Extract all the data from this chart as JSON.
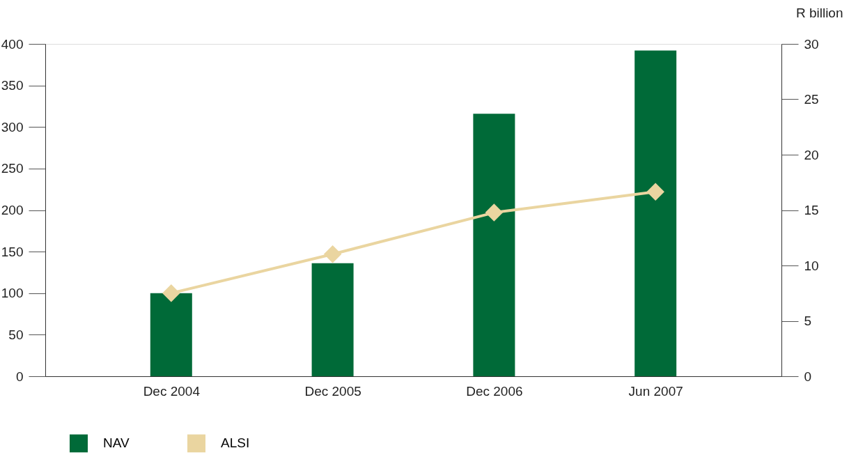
{
  "chart_data": {
    "type": "bar",
    "categories": [
      "Dec 2004",
      "Dec 2005",
      "Dec 2006",
      "Jun 2007"
    ],
    "series": [
      {
        "name": "NAV",
        "axis": "y2",
        "color": "#006a38",
        "values": [
          7.5,
          10.2,
          23.7,
          29.4
        ]
      },
      {
        "name": "ALSI",
        "type": "line",
        "color": "#ead5a0",
        "values": [
          100,
          147,
          197,
          222
        ]
      }
    ],
    "ylim": [
      0,
      400
    ],
    "yticks": [
      0,
      50,
      100,
      150,
      200,
      250,
      300,
      350,
      400
    ],
    "y2lim": [
      0,
      30
    ],
    "y2ticks": [
      0,
      5,
      10,
      15,
      20,
      25,
      30
    ],
    "y2label": "R billion",
    "marker": "diamond",
    "line_style": "solid",
    "legend": "bottom left",
    "grid": false
  }
}
